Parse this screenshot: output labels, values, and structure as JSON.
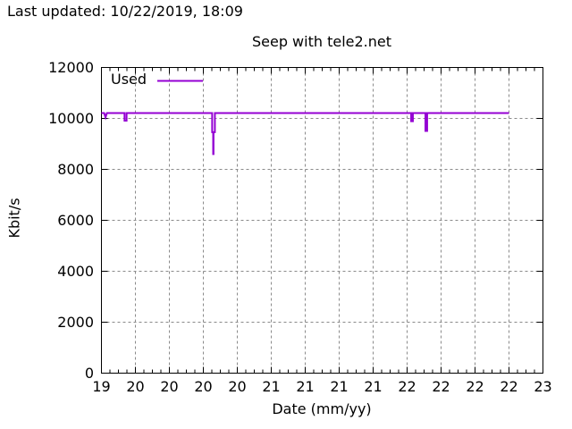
{
  "header": {
    "last_updated": "Last updated: 10/22/2019, 18:09"
  },
  "chart_data": {
    "type": "line",
    "title": "Seep with tele2.net",
    "xlabel": "Date (mm/yy)",
    "ylabel": "Kbit/s",
    "ylim": [
      0,
      12000
    ],
    "yticks": [
      0,
      2000,
      4000,
      6000,
      8000,
      10000,
      12000
    ],
    "x_tick_labels": [
      "19",
      "20",
      "20",
      "20",
      "20",
      "21",
      "21",
      "21",
      "21",
      "22",
      "22",
      "22",
      "22",
      "23"
    ],
    "x_minor_ticks_per_interval": 3,
    "grid": true,
    "grid_color": "#8a8a8a",
    "border_color": "#000000",
    "background": "#ffffff",
    "legend": {
      "position": "top-left-inside"
    },
    "series": [
      {
        "name": "Used",
        "color": "#9400d3",
        "x_unit": "major-tick-index",
        "points": [
          [
            0,
            10210
          ],
          [
            0.08,
            10210
          ],
          [
            0.12,
            10040
          ],
          [
            0.16,
            10210
          ],
          [
            0.68,
            10210
          ],
          [
            0.68,
            9910
          ],
          [
            0.74,
            9910
          ],
          [
            0.74,
            10210
          ],
          [
            3.26,
            10210
          ],
          [
            3.26,
            9460
          ],
          [
            3.29,
            9460
          ],
          [
            3.29,
            8600
          ],
          [
            3.3,
            8600
          ],
          [
            3.3,
            9460
          ],
          [
            3.34,
            9460
          ],
          [
            3.34,
            10210
          ],
          [
            9.12,
            10210
          ],
          [
            9.12,
            9890
          ],
          [
            9.17,
            9890
          ],
          [
            9.17,
            10210
          ],
          [
            9.54,
            10210
          ],
          [
            9.54,
            9510
          ],
          [
            9.59,
            9510
          ],
          [
            9.59,
            10210
          ],
          [
            12,
            10210
          ]
        ]
      }
    ]
  }
}
